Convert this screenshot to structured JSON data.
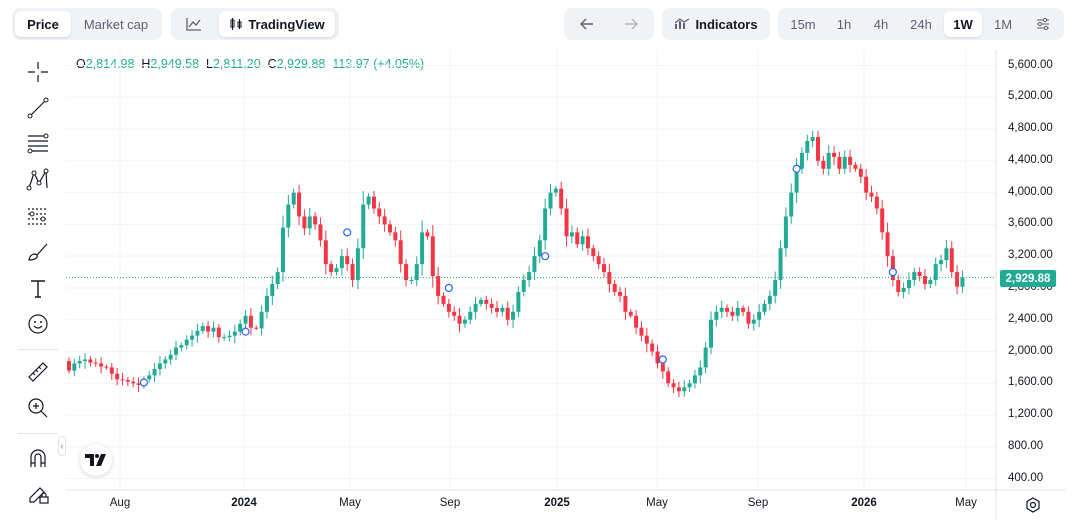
{
  "toolbar": {
    "tabs": [
      {
        "label": "Price"
      },
      {
        "label": "Market cap"
      }
    ],
    "tradingview_label": "TradingView",
    "indicators_label": "Indicators",
    "intervals": [
      "15m",
      "1h",
      "4h",
      "24h",
      "1W",
      "1M"
    ],
    "active_interval": "1W"
  },
  "ohlc": {
    "o_label": "O",
    "o": "2,814.98",
    "h_label": "H",
    "h": "2,949.58",
    "l_label": "L",
    "l": "2,811.20",
    "c_label": "C",
    "c": "2,929.88",
    "change": "113.97 (+4.05%)"
  },
  "last_price": "2,929.88",
  "colors": {
    "up": "#22ab94",
    "down": "#f23645",
    "marker": "#2962ff"
  },
  "icons": [
    "crosshair-icon",
    "trend-line-icon",
    "fib-retracement-icon",
    "pattern-icon",
    "forecast-icon",
    "brush-icon",
    "text-icon",
    "emoji-icon",
    "ruler-icon",
    "zoom-in-icon",
    "magnet-icon",
    "lock-drawing-icon",
    "undo-icon",
    "redo-icon",
    "indicators-icon",
    "chart-type-icon",
    "settings-icon"
  ],
  "chart_data": {
    "type": "candlestick",
    "title": "",
    "interval": "1W",
    "y_ticks": [
      "5,600.00",
      "5,200.00",
      "4,800.00",
      "4,400.00",
      "4,000.00",
      "3,600.00",
      "3,200.00",
      "2,800.00",
      "2,400.00",
      "2,000.00",
      "1,600.00",
      "1,200.00",
      "800.00",
      "400.00"
    ],
    "ylim": [
      150,
      5850
    ],
    "x_ticks": [
      {
        "label": "Aug",
        "bold": false
      },
      {
        "label": "2024",
        "bold": true
      },
      {
        "label": "May",
        "bold": false
      },
      {
        "label": "Sep",
        "bold": false
      },
      {
        "label": "2025",
        "bold": true
      },
      {
        "label": "May",
        "bold": false
      },
      {
        "label": "Sep",
        "bold": false
      },
      {
        "label": "2026",
        "bold": true
      },
      {
        "label": "May",
        "bold": false
      }
    ],
    "close_values": [
      1760,
      1850,
      1880,
      1900,
      1860,
      1850,
      1810,
      1800,
      1720,
      1650,
      1640,
      1620,
      1600,
      1580,
      1650,
      1700,
      1780,
      1850,
      1900,
      1960,
      2050,
      2080,
      2150,
      2200,
      2260,
      2320,
      2250,
      2300,
      2180,
      2180,
      2200,
      2250,
      2350,
      2450,
      2300,
      2290,
      2500,
      2700,
      2850,
      3000,
      3560,
      3850,
      4000,
      3700,
      3550,
      3700,
      3600,
      3400,
      3100,
      3000,
      3050,
      3200,
      3100,
      2900,
      3300,
      3850,
      3950,
      3800,
      3700,
      3600,
      3500,
      3400,
      3100,
      2900,
      2900,
      3100,
      3500,
      3450,
      2950,
      2700,
      2600,
      2500,
      2450,
      2350,
      2400,
      2500,
      2600,
      2650,
      2600,
      2550,
      2500,
      2550,
      2400,
      2500,
      2750,
      2900,
      3000,
      3200,
      3400,
      3800,
      4000,
      4050,
      3800,
      3450,
      3500,
      3350,
      3450,
      3300,
      3200,
      3100,
      3000,
      2850,
      2750,
      2700,
      2500,
      2450,
      2300,
      2200,
      2100,
      2000,
      1850,
      1750,
      1600,
      1550,
      1500,
      1550,
      1600,
      1700,
      1800,
      2050,
      2400,
      2500,
      2550,
      2500,
      2450,
      2550,
      2500,
      2350,
      2400,
      2500,
      2600,
      2700,
      2900,
      3300,
      3700,
      4000,
      4300,
      4500,
      4650,
      4700,
      4400,
      4300,
      4500,
      4450,
      4300,
      4450,
      4350,
      4300,
      4200,
      4000,
      3950,
      3800,
      3500,
      3200,
      2900,
      2750,
      2800,
      2900,
      3000,
      2950,
      2850,
      2900,
      3100,
      3150,
      3300,
      3000,
      2816,
      2930
    ],
    "markers": [
      {
        "week": 14,
        "price": 1610,
        "label": ""
      },
      {
        "week": 33,
        "price": 2250,
        "label": ""
      },
      {
        "week": 52,
        "price": 3500,
        "label": ""
      },
      {
        "week": 71,
        "price": 2800,
        "label": ""
      },
      {
        "week": 89,
        "price": 3200,
        "label": ""
      },
      {
        "week": 111,
        "price": 1900,
        "label": ""
      },
      {
        "week": 136,
        "price": 4300,
        "label": ""
      },
      {
        "week": 154,
        "price": 3000,
        "label": ""
      }
    ]
  }
}
